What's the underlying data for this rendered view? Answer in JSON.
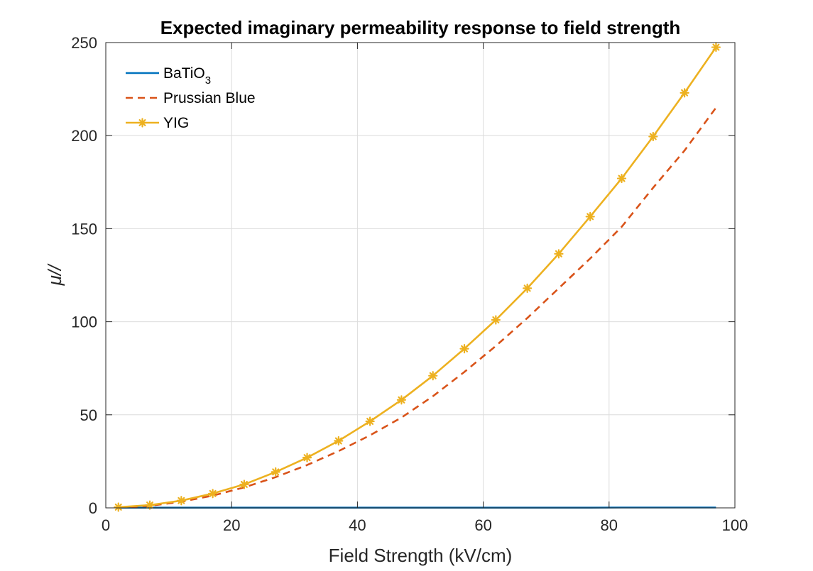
{
  "chart_data": {
    "type": "line",
    "title": "Expected imaginary permeability response to field strength",
    "xlabel": "Field Strength (kV/cm)",
    "ylabel": "μ//",
    "xlim": [
      0,
      100
    ],
    "ylim": [
      0,
      250
    ],
    "xticks": [
      0,
      20,
      40,
      60,
      80,
      100
    ],
    "yticks": [
      0,
      50,
      100,
      150,
      200,
      250
    ],
    "grid": true,
    "legend_position": "top-left",
    "x": [
      2,
      7,
      12,
      17,
      22,
      27,
      32,
      37,
      42,
      47,
      52,
      57,
      62,
      67,
      72,
      77,
      82,
      87,
      92,
      97
    ],
    "series": [
      {
        "name": "BaTiO3",
        "name_base": "BaTiO",
        "name_sub": "3",
        "color": "#0072BD",
        "style": "solid",
        "marker": "none",
        "values": [
          0.1,
          0.1,
          0.1,
          0.1,
          0.1,
          0.1,
          0.1,
          0.1,
          0.1,
          0.1,
          0.1,
          0.1,
          0.1,
          0.1,
          0.1,
          0.1,
          0.2,
          0.2,
          0.2,
          0.2
        ]
      },
      {
        "name": "Prussian Blue",
        "color": "#D95319",
        "style": "dashed",
        "marker": "none",
        "values": [
          0.2,
          1.1,
          3.3,
          6.6,
          11.0,
          16.5,
          23.0,
          30.5,
          39.0,
          48.5,
          60.0,
          73.0,
          87.0,
          102.0,
          118.0,
          134.0,
          151.0,
          172.0,
          192.0,
          215.0
        ]
      },
      {
        "name": "YIG",
        "color": "#EDB120",
        "style": "solid",
        "marker": "asterisk",
        "values": [
          0.4,
          1.5,
          3.9,
          7.7,
          12.6,
          19.3,
          27.0,
          36.0,
          46.5,
          58.0,
          71.0,
          85.5,
          101.0,
          118.0,
          136.5,
          156.5,
          177.0,
          199.5,
          223.0,
          247.5
        ]
      }
    ]
  }
}
